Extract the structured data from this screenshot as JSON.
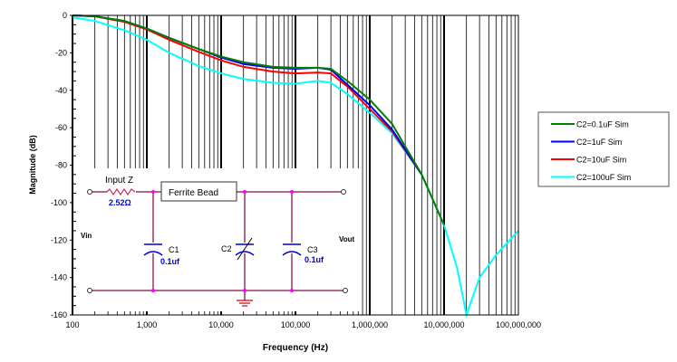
{
  "chart_data": {
    "type": "line",
    "xscale": "log",
    "xlabel": "Frequency (Hz)",
    "ylabel": "Magnitude (dB)",
    "xlim": [
      100,
      100000000
    ],
    "ylim": [
      -160,
      0
    ],
    "grid": true,
    "legend_position": "right",
    "x_tick_labels": [
      "100",
      "1,000",
      "10,000",
      "100,000",
      "1,000,000",
      "10,000,000",
      "100,000,000"
    ],
    "y_tick_labels": [
      "0",
      "-20",
      "-40",
      "-60",
      "-80",
      "-100",
      "-120",
      "-140",
      "-160"
    ],
    "series": [
      {
        "name": "C2=0.1uF Sim",
        "color": "#008000",
        "x": [
          100,
          200,
          500,
          1000,
          2000,
          5000,
          10000,
          20000,
          50000,
          100000,
          200000,
          300000,
          500000,
          1000000,
          2000000,
          5000000,
          10000000
        ],
        "y": [
          0,
          -0.5,
          -3,
          -7,
          -12,
          -18,
          -22,
          -25,
          -27.5,
          -28,
          -28,
          -28.5,
          -35,
          -45,
          -58,
          -85,
          -112
        ]
      },
      {
        "name": "C2=1uF Sim",
        "color": "#0000ff",
        "x": [
          100,
          200,
          500,
          1000,
          2000,
          5000,
          10000,
          20000,
          50000,
          100000,
          200000,
          300000,
          500000,
          1000000,
          2000000,
          5000000
        ],
        "y": [
          0,
          -0.5,
          -3,
          -7,
          -12,
          -18,
          -22.5,
          -26,
          -28,
          -28.5,
          -28,
          -29,
          -37,
          -48,
          -61,
          -85
        ]
      },
      {
        "name": "C2=10uF Sim",
        "color": "#ff0000",
        "x": [
          100,
          200,
          500,
          1000,
          2000,
          5000,
          10000,
          20000,
          50000,
          100000,
          200000,
          300000,
          500000,
          1000000,
          2000000,
          5000000
        ],
        "y": [
          0,
          -0.5,
          -3.5,
          -7.5,
          -13,
          -19.5,
          -24,
          -27.5,
          -30,
          -31,
          -30.5,
          -31,
          -38,
          -50,
          -62,
          -85
        ]
      },
      {
        "name": "C2=100uF Sim",
        "color": "#00ffff",
        "x": [
          100,
          200,
          500,
          1000,
          2000,
          5000,
          10000,
          20000,
          50000,
          100000,
          200000,
          300000,
          500000,
          1000000,
          2000000,
          5000000,
          10000000,
          15000000,
          20000000,
          30000000,
          50000000,
          100000000
        ],
        "y": [
          -1,
          -3,
          -8,
          -13,
          -20,
          -27,
          -31,
          -34,
          -36,
          -36.5,
          -35,
          -36,
          -42,
          -52,
          -63,
          -85,
          -112,
          -135,
          -160,
          -140,
          -128,
          -115
        ]
      }
    ]
  },
  "schematic": {
    "input_z_label": "Input Z",
    "resistor_value": "2.52Ω",
    "ferrite_label": "Ferrite Bead",
    "vin_label": "Vin",
    "vout_label": "Vout",
    "c1_label": "C1",
    "c1_value": "0.1uf",
    "c2_label": "C2",
    "c3_label": "C3",
    "c3_value": "0.1uf"
  }
}
